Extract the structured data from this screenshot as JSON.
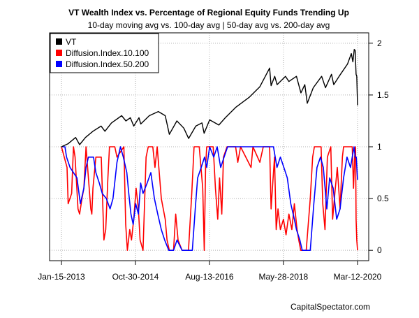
{
  "chart_data": {
    "type": "line",
    "title": "VT Wealth Index vs. Percentage of Regional Equity Funds Trending Up",
    "subtitle": "10-day moving avg vs. 100-day avg | 50-day avg vs. 200-day avg",
    "credit": "CapitalSpectator.com",
    "grid": true,
    "legend_position": "top-left",
    "x_range": [
      "2013-01-15",
      "2020-03-12"
    ],
    "x_ticks": [
      {
        "date": "2013-01-15",
        "label": "Jan-15-2013"
      },
      {
        "date": "2014-10-30",
        "label": "Oct-30-2014"
      },
      {
        "date": "2016-08-13",
        "label": "Aug-13-2016"
      },
      {
        "date": "2018-05-28",
        "label": "May-28-2018"
      },
      {
        "date": "2020-03-12",
        "label": "Mar-12-2020"
      }
    ],
    "y_range": [
      -0.1,
      2.1
    ],
    "y_ticks": [
      0,
      0.5,
      1,
      1.5,
      2
    ],
    "y_tick_labels": [
      "0",
      "0.5",
      "1",
      "1.5",
      "2"
    ],
    "series": [
      {
        "name": "VT",
        "color": "#000000",
        "points": [
          [
            "2013-01-15",
            1.0
          ],
          [
            "2013-03-15",
            1.03
          ],
          [
            "2013-05-20",
            1.09
          ],
          [
            "2013-06-24",
            1.02
          ],
          [
            "2013-08-15",
            1.09
          ],
          [
            "2013-10-20",
            1.15
          ],
          [
            "2013-12-31",
            1.2
          ],
          [
            "2014-02-03",
            1.15
          ],
          [
            "2014-04-01",
            1.23
          ],
          [
            "2014-06-30",
            1.3
          ],
          [
            "2014-08-07",
            1.25
          ],
          [
            "2014-09-15",
            1.28
          ],
          [
            "2014-10-15",
            1.2
          ],
          [
            "2014-11-30",
            1.28
          ],
          [
            "2014-12-16",
            1.22
          ],
          [
            "2015-03-01",
            1.3
          ],
          [
            "2015-05-20",
            1.34
          ],
          [
            "2015-07-20",
            1.3
          ],
          [
            "2015-08-25",
            1.12
          ],
          [
            "2015-10-31",
            1.25
          ],
          [
            "2015-12-31",
            1.18
          ],
          [
            "2016-02-11",
            1.08
          ],
          [
            "2016-04-15",
            1.2
          ],
          [
            "2016-06-08",
            1.23
          ],
          [
            "2016-06-27",
            1.13
          ],
          [
            "2016-08-15",
            1.26
          ],
          [
            "2016-11-04",
            1.21
          ],
          [
            "2016-12-31",
            1.28
          ],
          [
            "2017-04-01",
            1.38
          ],
          [
            "2017-08-01",
            1.48
          ],
          [
            "2017-11-01",
            1.58
          ],
          [
            "2018-01-26",
            1.76
          ],
          [
            "2018-02-08",
            1.59
          ],
          [
            "2018-03-12",
            1.68
          ],
          [
            "2018-04-02",
            1.6
          ],
          [
            "2018-06-15",
            1.68
          ],
          [
            "2018-07-15",
            1.63
          ],
          [
            "2018-09-20",
            1.68
          ],
          [
            "2018-10-29",
            1.52
          ],
          [
            "2018-12-03",
            1.6
          ],
          [
            "2018-12-24",
            1.42
          ],
          [
            "2019-02-15",
            1.57
          ],
          [
            "2019-04-30",
            1.68
          ],
          [
            "2019-06-03",
            1.57
          ],
          [
            "2019-07-26",
            1.7
          ],
          [
            "2019-08-15",
            1.6
          ],
          [
            "2019-10-01",
            1.68
          ],
          [
            "2019-12-15",
            1.8
          ],
          [
            "2020-01-17",
            1.9
          ],
          [
            "2020-01-31",
            1.82
          ],
          [
            "2020-02-12",
            1.94
          ],
          [
            "2020-02-20",
            1.93
          ],
          [
            "2020-02-28",
            1.7
          ],
          [
            "2020-03-05",
            1.68
          ],
          [
            "2020-03-09",
            1.52
          ],
          [
            "2020-03-12",
            1.4
          ]
        ]
      },
      {
        "name": "Diffusion.Index.10.100",
        "color": "#ff0000",
        "points": [
          [
            "2013-01-15",
            1.0
          ],
          [
            "2013-03-05",
            0.8
          ],
          [
            "2013-03-15",
            0.45
          ],
          [
            "2013-04-15",
            0.55
          ],
          [
            "2013-05-01",
            1.0
          ],
          [
            "2013-05-15",
            0.9
          ],
          [
            "2013-06-10",
            0.4
          ],
          [
            "2013-06-24",
            0.35
          ],
          [
            "2013-07-15",
            0.5
          ],
          [
            "2013-08-01",
            0.6
          ],
          [
            "2013-08-20",
            1.0
          ],
          [
            "2013-10-01",
            0.4
          ],
          [
            "2013-10-10",
            0.35
          ],
          [
            "2013-10-20",
            0.6
          ],
          [
            "2013-11-15",
            0.9
          ],
          [
            "2014-01-01",
            0.9
          ],
          [
            "2014-01-25",
            0.1
          ],
          [
            "2014-02-10",
            0.2
          ],
          [
            "2014-03-01",
            0.7
          ],
          [
            "2014-03-15",
            1.0
          ],
          [
            "2014-05-01",
            1.0
          ],
          [
            "2014-05-20",
            0.9
          ],
          [
            "2014-07-20",
            1.0
          ],
          [
            "2014-08-05",
            0.25
          ],
          [
            "2014-08-20",
            0.0
          ],
          [
            "2014-09-10",
            0.2
          ],
          [
            "2014-09-25",
            0.1
          ],
          [
            "2014-10-15",
            0.3
          ],
          [
            "2014-11-05",
            0.6
          ],
          [
            "2014-11-25",
            0.4
          ],
          [
            "2014-12-10",
            0.1
          ],
          [
            "2015-01-05",
            0.0
          ],
          [
            "2015-02-01",
            0.9
          ],
          [
            "2015-02-20",
            1.0
          ],
          [
            "2015-04-01",
            1.0
          ],
          [
            "2015-04-20",
            0.8
          ],
          [
            "2015-05-10",
            1.0
          ],
          [
            "2015-06-15",
            0.5
          ],
          [
            "2015-07-20",
            0.3
          ],
          [
            "2015-08-05",
            0.1
          ],
          [
            "2015-08-25",
            0.0
          ],
          [
            "2015-10-01",
            0.0
          ],
          [
            "2015-10-20",
            0.35
          ],
          [
            "2015-11-10",
            0.1
          ],
          [
            "2015-12-15",
            0.0
          ],
          [
            "2016-02-10",
            0.0
          ],
          [
            "2016-03-10",
            0.55
          ],
          [
            "2016-03-30",
            1.0
          ],
          [
            "2016-05-15",
            1.0
          ],
          [
            "2016-06-15",
            0.6
          ],
          [
            "2016-06-28",
            0.0
          ],
          [
            "2016-07-10",
            0.8
          ],
          [
            "2016-07-20",
            1.0
          ],
          [
            "2016-09-15",
            1.0
          ],
          [
            "2016-10-05",
            0.6
          ],
          [
            "2016-10-25",
            0.3
          ],
          [
            "2016-11-10",
            0.7
          ],
          [
            "2016-11-30",
            0.35
          ],
          [
            "2016-12-15",
            0.9
          ],
          [
            "2017-01-15",
            1.0
          ],
          [
            "2017-04-01",
            1.0
          ],
          [
            "2017-04-20",
            0.85
          ],
          [
            "2017-05-15",
            1.0
          ],
          [
            "2017-08-15",
            0.8
          ],
          [
            "2017-09-01",
            1.0
          ],
          [
            "2017-11-01",
            0.85
          ],
          [
            "2017-12-01",
            1.0
          ],
          [
            "2018-01-26",
            1.0
          ],
          [
            "2018-02-08",
            0.4
          ],
          [
            "2018-02-20",
            0.6
          ],
          [
            "2018-03-10",
            0.9
          ],
          [
            "2018-03-25",
            0.2
          ],
          [
            "2018-04-10",
            0.4
          ],
          [
            "2018-05-01",
            0.2
          ],
          [
            "2018-05-28",
            0.3
          ],
          [
            "2018-06-20",
            0.15
          ],
          [
            "2018-07-15",
            0.35
          ],
          [
            "2018-08-10",
            0.2
          ],
          [
            "2018-09-01",
            0.45
          ],
          [
            "2018-09-25",
            0.2
          ],
          [
            "2018-10-10",
            0.1
          ],
          [
            "2018-10-28",
            0.0
          ],
          [
            "2018-12-15",
            0.0
          ],
          [
            "2019-01-20",
            0.5
          ],
          [
            "2019-02-10",
            0.9
          ],
          [
            "2019-02-25",
            1.0
          ],
          [
            "2019-04-25",
            1.0
          ],
          [
            "2019-05-10",
            0.45
          ],
          [
            "2019-05-30",
            0.2
          ],
          [
            "2019-06-20",
            0.9
          ],
          [
            "2019-07-20",
            1.0
          ],
          [
            "2019-08-05",
            0.3
          ],
          [
            "2019-08-25",
            0.55
          ],
          [
            "2019-09-15",
            0.8
          ],
          [
            "2019-10-10",
            0.4
          ],
          [
            "2019-10-30",
            0.9
          ],
          [
            "2019-11-10",
            1.0
          ],
          [
            "2020-01-25",
            1.0
          ],
          [
            "2020-02-05",
            0.6
          ],
          [
            "2020-02-15",
            0.9
          ],
          [
            "2020-02-24",
            1.0
          ],
          [
            "2020-02-28",
            0.3
          ],
          [
            "2020-03-05",
            0.1
          ],
          [
            "2020-03-12",
            0.0
          ]
        ]
      },
      {
        "name": "Diffusion.Index.50.200",
        "color": "#0000ff",
        "points": [
          [
            "2013-01-15",
            1.0
          ],
          [
            "2013-02-15",
            1.0
          ],
          [
            "2013-03-01",
            0.9
          ],
          [
            "2013-04-01",
            0.8
          ],
          [
            "2013-06-01",
            0.7
          ],
          [
            "2013-07-01",
            0.45
          ],
          [
            "2013-08-01",
            0.6
          ],
          [
            "2013-08-20",
            0.8
          ],
          [
            "2013-09-10",
            0.9
          ],
          [
            "2013-10-25",
            0.9
          ],
          [
            "2013-11-15",
            0.75
          ],
          [
            "2013-12-15",
            0.65
          ],
          [
            "2014-01-10",
            0.55
          ],
          [
            "2014-02-15",
            0.5
          ],
          [
            "2014-03-20",
            0.4
          ],
          [
            "2014-04-15",
            0.5
          ],
          [
            "2014-05-20",
            0.85
          ],
          [
            "2014-06-20",
            1.0
          ],
          [
            "2014-07-15",
            0.9
          ],
          [
            "2014-08-15",
            0.75
          ],
          [
            "2014-09-01",
            0.55
          ],
          [
            "2014-09-20",
            0.35
          ],
          [
            "2014-10-10",
            0.25
          ],
          [
            "2014-11-01",
            0.45
          ],
          [
            "2014-11-25",
            0.35
          ],
          [
            "2014-12-15",
            0.65
          ],
          [
            "2015-01-05",
            0.55
          ],
          [
            "2015-02-10",
            0.65
          ],
          [
            "2015-03-15",
            0.75
          ],
          [
            "2015-04-15",
            0.5
          ],
          [
            "2015-05-15",
            0.35
          ],
          [
            "2015-06-15",
            0.2
          ],
          [
            "2015-07-15",
            0.1
          ],
          [
            "2015-08-20",
            0.0
          ],
          [
            "2015-10-01",
            0.0
          ],
          [
            "2015-11-01",
            0.1
          ],
          [
            "2015-12-15",
            0.0
          ],
          [
            "2016-03-15",
            0.0
          ],
          [
            "2016-04-10",
            0.4
          ],
          [
            "2016-05-01",
            0.7
          ],
          [
            "2016-06-01",
            0.8
          ],
          [
            "2016-07-01",
            0.9
          ],
          [
            "2016-07-20",
            0.8
          ],
          [
            "2016-08-15",
            1.0
          ],
          [
            "2016-09-20",
            0.9
          ],
          [
            "2016-10-20",
            1.0
          ],
          [
            "2016-11-20",
            0.8
          ],
          [
            "2016-12-20",
            0.9
          ],
          [
            "2017-01-20",
            1.0
          ],
          [
            "2018-03-01",
            1.0
          ],
          [
            "2018-04-01",
            0.8
          ],
          [
            "2018-05-01",
            0.9
          ],
          [
            "2018-06-01",
            0.8
          ],
          [
            "2018-07-01",
            0.7
          ],
          [
            "2018-08-01",
            0.45
          ],
          [
            "2018-09-01",
            0.3
          ],
          [
            "2018-09-20",
            0.2
          ],
          [
            "2018-10-20",
            0.1
          ],
          [
            "2018-11-10",
            0.0
          ],
          [
            "2019-01-20",
            0.0
          ],
          [
            "2019-02-20",
            0.45
          ],
          [
            "2019-03-20",
            0.8
          ],
          [
            "2019-04-20",
            0.9
          ],
          [
            "2019-05-15",
            0.8
          ],
          [
            "2019-06-15",
            0.4
          ],
          [
            "2019-07-10",
            0.7
          ],
          [
            "2019-08-10",
            0.6
          ],
          [
            "2019-09-10",
            0.3
          ],
          [
            "2019-10-10",
            0.4
          ],
          [
            "2019-11-10",
            0.7
          ],
          [
            "2019-12-10",
            0.9
          ],
          [
            "2020-01-10",
            0.8
          ],
          [
            "2020-01-25",
            0.9
          ],
          [
            "2020-02-10",
            1.0
          ],
          [
            "2020-02-20",
            0.9
          ],
          [
            "2020-03-01",
            0.9
          ],
          [
            "2020-03-12",
            0.68
          ]
        ]
      }
    ]
  }
}
